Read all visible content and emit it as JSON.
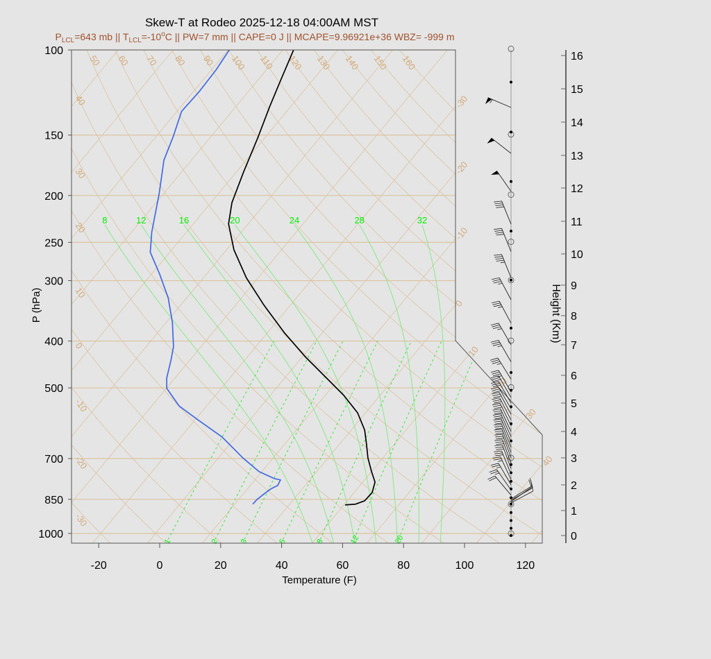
{
  "title": "Skew-T at Rodeo 2025-12-18 04:00AM MST",
  "subtitle": {
    "p": "P",
    "p_sub": "LCL",
    "p_val": "=643 mb || T",
    "t_sub": "LCL",
    "t_val": "=-10",
    "deg": "o",
    "rest": "C || PW=7 mm || CAPE=0 J || MCAPE=9.96921e+36 WBZ= -999 m"
  },
  "colors": {
    "temperature": "#000000",
    "dewpoint": "#4169e1",
    "grid": "#dcc3a0",
    "grid_label": "#d2aa7a",
    "moist": "#7fe87f",
    "subtitle": "#a0522d"
  },
  "chart_data": {
    "type": "line",
    "title": "Skew-T at Rodeo 2025-12-18 04:00AM MST",
    "xlabel": "Temperature (F)",
    "ylabel": "P (hPa)",
    "y2label": "Height (Km)",
    "y_scale": "log",
    "ylim": [
      1047,
      100
    ],
    "x_ticks": [
      "-20",
      "0",
      "20",
      "40",
      "60",
      "80",
      "100",
      "120"
    ],
    "x_tick_values": [
      -20,
      0,
      20,
      40,
      60,
      80,
      100,
      120
    ],
    "y_ticks": [
      "100",
      "150",
      "200",
      "250",
      "300",
      "400",
      "500",
      "700",
      "850",
      "1000"
    ],
    "y_tick_values": [
      100,
      150,
      200,
      250,
      300,
      400,
      500,
      700,
      850,
      1000
    ],
    "height_ticks": [
      "0",
      "1",
      "2",
      "3",
      "4",
      "5",
      "6",
      "7",
      "8",
      "9",
      "10",
      "11",
      "12",
      "13",
      "14",
      "15",
      "16"
    ],
    "isotherm_labels_C": [
      -30,
      -20,
      -10,
      0,
      10,
      20,
      30,
      40
    ],
    "dry_adiabat_labels_C": [
      -30,
      -20,
      -10,
      0,
      10,
      20,
      30,
      40,
      50,
      60,
      70,
      80,
      90,
      100,
      110,
      120,
      130,
      140,
      150,
      160
    ],
    "moist_adiabat_labels_C": [
      8,
      12,
      16,
      20,
      24,
      28,
      32
    ],
    "mixing_ratio_labels_gkg": [
      1,
      2,
      3,
      5,
      8,
      12,
      20
    ],
    "series": [
      {
        "name": "temperature",
        "unit": "F",
        "points": [
          [
            100,
            -90.5
          ],
          [
            115,
            -86.6
          ],
          [
            131,
            -82.9
          ],
          [
            152,
            -78.3
          ],
          [
            179,
            -73.6
          ],
          [
            207,
            -69.1
          ],
          [
            229,
            -64.4
          ],
          [
            259,
            -55.6
          ],
          [
            296,
            -43.9
          ],
          [
            337,
            -30.7
          ],
          [
            385,
            -16.3
          ],
          [
            432,
            -2.8
          ],
          [
            477,
            9.7
          ],
          [
            518,
            20.1
          ],
          [
            563,
            29.4
          ],
          [
            611,
            36.4
          ],
          [
            653,
            40.8
          ],
          [
            698,
            45.1
          ],
          [
            745,
            50.0
          ],
          [
            783,
            54.0
          ],
          [
            823,
            55.9
          ],
          [
            856,
            55.7
          ],
          [
            870,
            53.6
          ],
          [
            873,
            50.4
          ]
        ]
      },
      {
        "name": "dewpoint",
        "unit": "F",
        "points": [
          [
            100,
            -111.6
          ],
          [
            110,
            -110.5
          ],
          [
            122,
            -110.1
          ],
          [
            134,
            -110.5
          ],
          [
            151,
            -106.4
          ],
          [
            169,
            -103.0
          ],
          [
            198,
            -95.5
          ],
          [
            238,
            -87.4
          ],
          [
            262,
            -82.4
          ],
          [
            291,
            -73.3
          ],
          [
            326,
            -64.0
          ],
          [
            366,
            -56.0
          ],
          [
            411,
            -49.0
          ],
          [
            439,
            -46.1
          ],
          [
            477,
            -42.7
          ],
          [
            501,
            -39.9
          ],
          [
            545,
            -31.0
          ],
          [
            582,
            -21.1
          ],
          [
            632,
            -8.4
          ],
          [
            698,
            4.1
          ],
          [
            745,
            13.1
          ],
          [
            770,
            20.0
          ],
          [
            775,
            22.4
          ],
          [
            796,
            23.0
          ],
          [
            809,
            21.7
          ],
          [
            828,
            20.8
          ],
          [
            851,
            20.0
          ],
          [
            870,
            19.9
          ]
        ]
      }
    ],
    "wind_barbs": [
      {
        "height_km": 14.44,
        "dir": 293,
        "speed_kt": 55
      },
      {
        "height_km": 13.06,
        "dir": 308,
        "speed_kt": 50
      },
      {
        "height_km": 11.9,
        "dir": 325,
        "speed_kt": 50
      },
      {
        "height_km": 10.91,
        "dir": 338,
        "speed_kt": 40
      },
      {
        "height_km": 10.07,
        "dir": 338,
        "speed_kt": 40
      },
      {
        "height_km": 9.24,
        "dir": 338,
        "speed_kt": 45
      },
      {
        "height_km": 8.52,
        "dir": 332,
        "speed_kt": 35
      },
      {
        "height_km": 7.74,
        "dir": 332,
        "speed_kt": 35
      },
      {
        "height_km": 7.0,
        "dir": 330,
        "speed_kt": 35
      },
      {
        "height_km": 6.44,
        "dir": 330,
        "speed_kt": 35
      },
      {
        "height_km": 5.86,
        "dir": 328,
        "speed_kt": 35
      },
      {
        "height_km": 5.4,
        "dir": 330,
        "speed_kt": 35
      },
      {
        "height_km": 5.2,
        "dir": 330,
        "speed_kt": 30
      },
      {
        "height_km": 5.0,
        "dir": 330,
        "speed_kt": 30
      },
      {
        "height_km": 4.8,
        "dir": 330,
        "speed_kt": 30
      },
      {
        "height_km": 4.6,
        "dir": 332,
        "speed_kt": 30
      },
      {
        "height_km": 4.4,
        "dir": 333,
        "speed_kt": 30
      },
      {
        "height_km": 4.2,
        "dir": 334,
        "speed_kt": 30
      },
      {
        "height_km": 4.0,
        "dir": 335,
        "speed_kt": 30
      },
      {
        "height_km": 3.8,
        "dir": 336,
        "speed_kt": 30
      },
      {
        "height_km": 3.6,
        "dir": 337,
        "speed_kt": 30
      },
      {
        "height_km": 3.4,
        "dir": 338,
        "speed_kt": 30
      },
      {
        "height_km": 3.2,
        "dir": 339,
        "speed_kt": 30
      },
      {
        "height_km": 3.0,
        "dir": 340,
        "speed_kt": 30
      },
      {
        "height_km": 2.8,
        "dir": 340,
        "speed_kt": 30
      },
      {
        "height_km": 2.6,
        "dir": 340,
        "speed_kt": 30
      },
      {
        "height_km": 2.4,
        "dir": 338,
        "speed_kt": 30
      },
      {
        "height_km": 2.2,
        "dir": 335,
        "speed_kt": 25
      },
      {
        "height_km": 2.0,
        "dir": 330,
        "speed_kt": 25
      },
      {
        "height_km": 1.8,
        "dir": 325,
        "speed_kt": 25
      },
      {
        "height_km": 1.6,
        "dir": 320,
        "speed_kt": 20
      },
      {
        "height_km": 1.45,
        "dir": 58,
        "speed_kt": 10
      },
      {
        "height_km": 1.4,
        "dir": 60,
        "speed_kt": 10
      },
      {
        "height_km": 1.35,
        "dir": 55,
        "speed_kt": 10
      },
      {
        "height_km": 1.3,
        "dir": 62,
        "speed_kt": 10
      }
    ],
    "level_dots_km": [
      15.2,
      13.7,
      12.2,
      10.7,
      9.16,
      7.57,
      6.09,
      5.46,
      4.87,
      4.27,
      3.64,
      2.75,
      2.45,
      2.13,
      1.84,
      1.5,
      1.25,
      0.92,
      0.6,
      0.29,
      0.0
    ],
    "level_circles_km": [
      16.2,
      13.63,
      11.8,
      10.37,
      9.16,
      7.14,
      5.57,
      3.0,
      1.25,
      0.08
    ]
  }
}
